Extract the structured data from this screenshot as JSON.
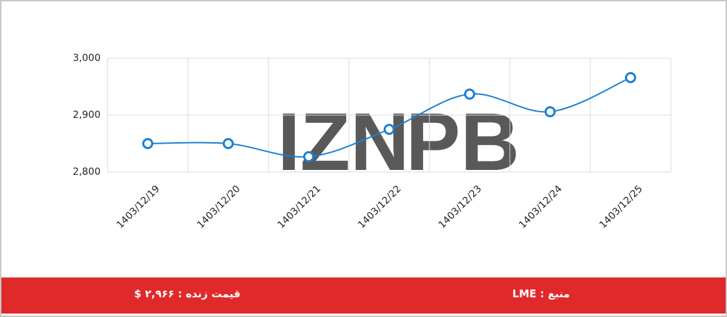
{
  "chart_data": {
    "type": "line",
    "categories": [
      "1403/12/19",
      "1403/12/20",
      "1403/12/21",
      "1403/12/22",
      "1403/12/23",
      "1403/12/24",
      "1403/12/25"
    ],
    "series": [
      {
        "color": "#1a7fd4",
        "values": [
          2850,
          2850,
          2827,
          2875,
          2937,
          2906,
          2966
        ]
      }
    ],
    "ylim": [
      2800,
      3000
    ],
    "yticks": [
      {
        "value": 2800,
        "label": "2,800"
      },
      {
        "value": 2900,
        "label": "2,900"
      },
      {
        "value": 3000,
        "label": "3,000"
      }
    ],
    "grid": true
  },
  "watermark": {
    "left": "IZN",
    "right": "PB"
  },
  "footer": {
    "price": "قیمت زنده : ۲,۹۶۶ $",
    "source": "منبع : LME",
    "color": "#e0292b"
  }
}
